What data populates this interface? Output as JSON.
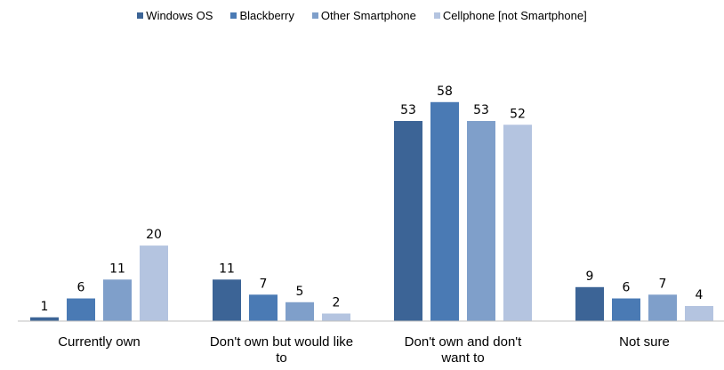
{
  "chart_data": {
    "type": "bar",
    "categories": [
      [
        "Currently own"
      ],
      [
        "Don't own but would like",
        "to"
      ],
      [
        "Don't own and don't",
        "want to"
      ],
      [
        "Not sure"
      ]
    ],
    "series": [
      {
        "name": "Windows OS",
        "color": "#3c6496",
        "values": [
          1,
          11,
          53,
          9
        ]
      },
      {
        "name": "Blackberry",
        "color": "#4a7ab4",
        "values": [
          6,
          7,
          58,
          6
        ]
      },
      {
        "name": "Other Smartphone",
        "color": "#7f9fca",
        "values": [
          11,
          5,
          53,
          7
        ]
      },
      {
        "name": "Cellphone [not Smartphone]",
        "color": "#b4c4e0",
        "values": [
          20,
          2,
          52,
          4
        ]
      }
    ],
    "legend_position": "top",
    "grid": false
  }
}
